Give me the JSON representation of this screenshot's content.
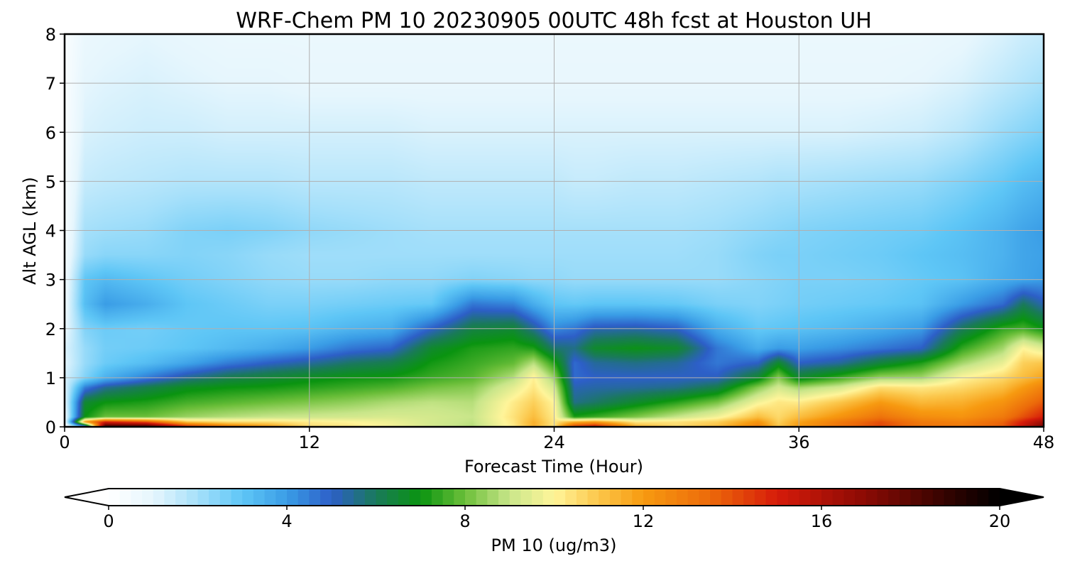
{
  "chart_data": {
    "type": "heatmap",
    "title": "WRF-Chem PM 10  20230905 00UTC 48h fcst at Houston UH",
    "xlabel": "Forecast Time (Hour)",
    "ylabel": "Alt AGL (km)",
    "xlim": [
      0,
      48
    ],
    "ylim": [
      0,
      8
    ],
    "x_ticks": [
      0,
      12,
      24,
      36,
      48
    ],
    "y_ticks": [
      0,
      1,
      2,
      3,
      4,
      5,
      6,
      7,
      8
    ],
    "grid": true,
    "colorbar": {
      "label": "PM 10  (ug/m3)",
      "range": [
        0,
        20
      ],
      "ticks": [
        0,
        4,
        8,
        12,
        16,
        20
      ],
      "extend": "both",
      "stops": [
        {
          "value": 0,
          "color": "#ffffff"
        },
        {
          "value": 1,
          "color": "#e6f6fd"
        },
        {
          "value": 2,
          "color": "#a6e0fa"
        },
        {
          "value": 3,
          "color": "#5ec6f6"
        },
        {
          "value": 4,
          "color": "#3a9de6"
        },
        {
          "value": 5,
          "color": "#2d5fc8"
        },
        {
          "value": 6,
          "color": "#1a7a5a"
        },
        {
          "value": 7,
          "color": "#0a9410"
        },
        {
          "value": 8,
          "color": "#6cbf3a"
        },
        {
          "value": 9,
          "color": "#c9e68a"
        },
        {
          "value": 10,
          "color": "#fff59a"
        },
        {
          "value": 11,
          "color": "#fbc64a"
        },
        {
          "value": 12,
          "color": "#f79a10"
        },
        {
          "value": 13.5,
          "color": "#ec6a0a"
        },
        {
          "value": 15,
          "color": "#d61b0a"
        },
        {
          "value": 17,
          "color": "#8a0a04"
        },
        {
          "value": 19,
          "color": "#2a0200"
        },
        {
          "value": 20,
          "color": "#000000"
        }
      ]
    },
    "x": [
      0,
      1,
      2,
      4,
      6,
      8,
      10,
      12,
      14,
      16,
      18,
      20,
      22,
      23,
      24,
      25,
      26,
      28,
      30,
      32,
      34,
      35,
      36,
      38,
      40,
      42,
      44,
      46,
      47,
      48
    ],
    "y": [
      0,
      0.1,
      0.2,
      0.5,
      0.8,
      1.0,
      1.3,
      1.6,
      2.0,
      2.5,
      3.0,
      3.5,
      4.0,
      5.0,
      6.0,
      7.0,
      8.0
    ],
    "z": [
      [
        0.1,
        0.3,
        0.5,
        0.8,
        1.0,
        1.2,
        1.0,
        1.1,
        0.8,
        0.6,
        0.5,
        0.4,
        0.3,
        0.3,
        0.2,
        0.2,
        0.2
      ],
      [
        3,
        12,
        7,
        6.5,
        4.5,
        2.5,
        2.2,
        2.2,
        2.5,
        3.2,
        3.0,
        2.2,
        2.0,
        1.5,
        1.2,
        1.0,
        0.8
      ],
      [
        19,
        15,
        8,
        7,
        5.5,
        3.5,
        2.8,
        2.7,
        2.8,
        4.0,
        3.3,
        2.4,
        2.1,
        1.6,
        1.3,
        1.1,
        0.9
      ],
      [
        19,
        14,
        8,
        7.2,
        6.2,
        4.5,
        3.2,
        2.8,
        2.7,
        3.6,
        3.0,
        2.4,
        2.2,
        1.7,
        1.4,
        1.2,
        1.0
      ],
      [
        15,
        11,
        8.5,
        7.6,
        6.8,
        5.5,
        3.8,
        3.0,
        2.9,
        3.0,
        2.7,
        2.5,
        2.5,
        1.8,
        1.4,
        1.1,
        0.9
      ],
      [
        13,
        10.5,
        8.8,
        7.8,
        7.0,
        6.2,
        4.5,
        3.3,
        3.0,
        2.8,
        2.5,
        2.4,
        2.6,
        1.8,
        1.3,
        1.0,
        0.8
      ],
      [
        12,
        10.5,
        9.0,
        8.0,
        7.1,
        6.5,
        5.0,
        3.6,
        3.0,
        2.6,
        2.3,
        2.2,
        2.5,
        1.8,
        1.3,
        1.0,
        0.8
      ],
      [
        10.5,
        10.2,
        9.1,
        8.2,
        7.3,
        6.8,
        5.4,
        4.0,
        3.1,
        2.6,
        2.2,
        2.1,
        2.3,
        1.7,
        1.3,
        0.9,
        0.8
      ],
      [
        10.3,
        10.0,
        9.2,
        8.4,
        7.5,
        7.0,
        5.9,
        4.6,
        3.4,
        2.7,
        2.2,
        2.1,
        2.2,
        1.7,
        1.3,
        0.9,
        0.8
      ],
      [
        9.8,
        9.7,
        9.3,
        8.7,
        7.7,
        7.1,
        6.2,
        4.9,
        3.6,
        2.8,
        2.3,
        2.1,
        2.1,
        1.7,
        1.3,
        0.9,
        0.8
      ],
      [
        9.2,
        9.2,
        9.2,
        8.9,
        8.1,
        7.5,
        7.1,
        6.6,
        5.0,
        2.9,
        2.3,
        2.1,
        2.0,
        1.6,
        1.2,
        0.9,
        0.8
      ],
      [
        8.8,
        8.9,
        9.0,
        8.8,
        8.3,
        7.8,
        7.5,
        7.2,
        6.3,
        4.6,
        2.5,
        2.1,
        2.0,
        1.6,
        1.2,
        0.9,
        0.8
      ],
      [
        10.2,
        10.3,
        10.4,
        10.2,
        9.5,
        8.8,
        7.9,
        7.4,
        6.5,
        4.4,
        2.4,
        2.1,
        2.0,
        1.6,
        1.2,
        0.9,
        0.8
      ],
      [
        11.5,
        11.5,
        11.2,
        10.8,
        10.3,
        10.1,
        8.8,
        7.2,
        5.5,
        3.6,
        2.3,
        2.1,
        2.0,
        1.6,
        1.2,
        0.9,
        0.8
      ],
      [
        10.3,
        10.3,
        10.2,
        10.0,
        9.2,
        8.5,
        7.3,
        5.8,
        4.3,
        3.0,
        2.3,
        2.1,
        2.0,
        1.6,
        1.2,
        0.9,
        0.8
      ],
      [
        14.5,
        11.5,
        7.2,
        5.6,
        5.2,
        4.8,
        4.8,
        5.6,
        4.6,
        2.9,
        2.2,
        2.1,
        2.0,
        1.5,
        1.2,
        0.9,
        0.8
      ],
      [
        15.5,
        12.0,
        7.5,
        5.9,
        5.3,
        5.0,
        5.4,
        6.6,
        5.2,
        3.0,
        2.2,
        2.1,
        2.0,
        1.5,
        1.2,
        0.9,
        0.8
      ],
      [
        11.5,
        10.3,
        8.2,
        6.6,
        5.4,
        5.0,
        5.6,
        6.9,
        5.3,
        3.0,
        2.2,
        2.1,
        2.0,
        1.6,
        1.2,
        0.9,
        0.8
      ],
      [
        10.6,
        10.4,
        9.0,
        7.3,
        5.6,
        5.0,
        5.4,
        6.6,
        5.0,
        2.9,
        2.2,
        2.1,
        2.0,
        1.6,
        1.2,
        0.9,
        0.8
      ],
      [
        11.2,
        10.8,
        9.8,
        8.1,
        6.2,
        5.1,
        4.6,
        4.6,
        3.6,
        2.6,
        2.2,
        2.2,
        2.1,
        1.7,
        1.2,
        0.9,
        0.8
      ],
      [
        12.8,
        12.2,
        11.2,
        9.8,
        8.3,
        6.6,
        5.0,
        3.6,
        2.9,
        2.5,
        2.4,
        2.5,
        2.3,
        1.8,
        1.2,
        0.9,
        0.8
      ],
      [
        11.0,
        10.8,
        10.6,
        10.3,
        9.2,
        8.3,
        6.6,
        4.0,
        3.0,
        2.6,
        2.5,
        2.6,
        2.4,
        1.9,
        1.2,
        0.9,
        0.8
      ],
      [
        12.0,
        11.8,
        11.2,
        10.2,
        8.6,
        6.6,
        5.0,
        3.9,
        3.1,
        2.7,
        2.6,
        2.6,
        2.5,
        1.9,
        1.2,
        0.9,
        0.8
      ],
      [
        13.2,
        13.0,
        12.2,
        11.0,
        9.2,
        7.5,
        5.4,
        4.2,
        3.3,
        2.8,
        2.6,
        2.7,
        2.6,
        2.0,
        1.2,
        0.9,
        0.8
      ],
      [
        14.2,
        14.0,
        13.2,
        12.0,
        10.5,
        8.5,
        6.4,
        4.6,
        3.6,
        2.9,
        2.7,
        2.8,
        2.7,
        2.1,
        1.3,
        0.9,
        0.8
      ],
      [
        13.2,
        13.0,
        12.4,
        11.3,
        10.3,
        8.6,
        7.2,
        5.0,
        4.0,
        3.1,
        2.9,
        3.0,
        2.8,
        2.2,
        1.4,
        1.0,
        0.8
      ],
      [
        13.0,
        12.8,
        12.2,
        11.5,
        10.6,
        10.0,
        8.6,
        7.4,
        6.0,
        4.0,
        3.1,
        3.2,
        3.1,
        2.5,
        1.7,
        1.2,
        0.9
      ],
      [
        13.8,
        13.6,
        13.0,
        12.2,
        11.2,
        10.6,
        9.6,
        8.6,
        7.4,
        4.8,
        3.6,
        3.5,
        3.5,
        2.9,
        2.2,
        1.6,
        1.2
      ],
      [
        15.5,
        15.0,
        14.0,
        13.0,
        12.0,
        11.2,
        10.8,
        10.0,
        7.6,
        6.0,
        3.8,
        3.8,
        3.8,
        3.2,
        2.4,
        1.8,
        1.4
      ],
      [
        17.5,
        16.5,
        15.0,
        13.8,
        12.8,
        11.8,
        11.0,
        9.4,
        7.0,
        5.2,
        4.0,
        3.9,
        4.0,
        3.4,
        2.6,
        2.0,
        1.5
      ]
    ]
  }
}
